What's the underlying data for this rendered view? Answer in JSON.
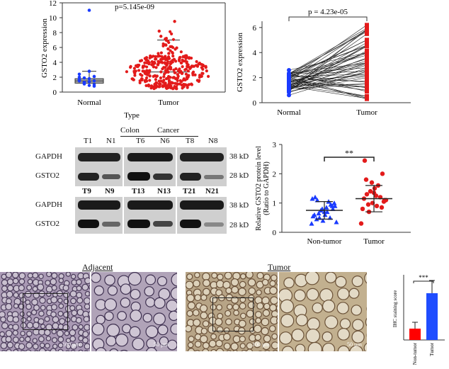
{
  "panel_a": {
    "pvalue": "p=5.145e-09",
    "ylabel": "GSTO2 expression",
    "xlabel": "Type",
    "yticks": [
      "0",
      "2",
      "4",
      "6",
      "8",
      "10",
      "12"
    ]
  },
  "panel_b": {
    "pvalue": "p = 4.23e-05",
    "ylabel": "GSTO2 expression",
    "yticks": [
      "0",
      "2",
      "4",
      "6"
    ]
  },
  "panel_c": {
    "group_label_1": "Colon",
    "group_label_2": "Cancer",
    "row1_samples": [
      "T1",
      "N1",
      "T6",
      "N6",
      "T8",
      "N8"
    ],
    "row2_samples": [
      "T9",
      "N9",
      "T13",
      "N13",
      "T21",
      "N21"
    ],
    "gapdh": "GAPDH",
    "gsto2": "GSTO2",
    "kd38": "38 kD",
    "kd28": "28 kD"
  },
  "panel_d": {
    "ylabel_line1": "Relative GSTO2 protein level",
    "ylabel_line2": "(Ratio to GAPDH)",
    "yticks": [
      "0",
      "1",
      "2",
      "3"
    ],
    "sig": "**"
  },
  "panel_e": {
    "adjacent": "Adjacent",
    "tumor": "Tumor",
    "scale1": "100 µm",
    "scale2": "50 µm",
    "scale3": "100 µm",
    "scale4": "50 µm",
    "ihc_ylabel": "IHC staining score",
    "ihc_sig": "***"
  },
  "chart_data": [
    {
      "type": "scatter",
      "categories": [
        "Normal",
        "Tumor"
      ],
      "ylim": [
        0,
        12
      ],
      "series": [
        {
          "name": "Normal",
          "values": [
            1.5,
            1.2,
            0.9,
            2.1,
            1.7,
            1.3,
            2.8,
            1.0,
            1.6,
            1.9,
            1.4,
            0.8,
            2.4,
            1.1,
            1.8,
            1.5,
            2.0,
            1.3,
            11.0
          ]
        },
        {
          "name": "Tumor",
          "values": [
            2.7,
            3.1,
            2.2,
            4.0,
            1.8,
            5.2,
            3.4,
            2.5,
            6.1,
            1.2,
            7.5,
            2.9,
            4.4,
            3.8,
            0.6,
            8.2,
            9.5,
            2.1,
            3.3,
            5.8
          ]
        }
      ]
    },
    {
      "type": "line",
      "categories": [
        "Normal",
        "Tumor"
      ],
      "ylim": [
        0,
        6.5
      ],
      "pairs": [
        [
          1.5,
          2.3
        ],
        [
          1.0,
          4.5
        ],
        [
          1.8,
          1.0
        ],
        [
          2.2,
          5.8
        ],
        [
          1.2,
          3.0
        ],
        [
          0.6,
          2.5
        ],
        [
          1.9,
          6.2
        ],
        [
          1.4,
          0.5
        ],
        [
          2.6,
          4.0
        ],
        [
          1.6,
          3.5
        ],
        [
          1.1,
          1.5
        ],
        [
          2.0,
          5.0
        ],
        [
          0.9,
          2.0
        ],
        [
          1.7,
          3.2
        ],
        [
          1.3,
          4.8
        ]
      ]
    },
    {
      "type": "scatter",
      "categories": [
        "Non-tumor",
        "Tumor"
      ],
      "ylim": [
        0,
        3
      ],
      "series": [
        {
          "name": "Non-tumor",
          "mean": 0.75,
          "sd": 0.3,
          "values": [
            0.3,
            0.5,
            0.7,
            0.9,
            1.1,
            0.6,
            0.8,
            1.2,
            0.4,
            0.95,
            0.55,
            0.75,
            1.05,
            0.35,
            0.65,
            0.85,
            1.0,
            0.45,
            0.7,
            0.9,
            0.6,
            0.8,
            0.5,
            1.15
          ]
        },
        {
          "name": "Tumor",
          "mean": 1.15,
          "sd": 0.45,
          "values": [
            0.3,
            0.7,
            0.9,
            1.1,
            1.3,
            1.5,
            2.0,
            2.45,
            1.0,
            1.2,
            0.8,
            1.4,
            1.6,
            1.1,
            0.95,
            1.25,
            1.05,
            1.8,
            1.35,
            0.85,
            1.15,
            1.7
          ]
        }
      ]
    },
    {
      "type": "bar",
      "categories": [
        "Non-tumor",
        "Tumor"
      ],
      "values": [
        1.6,
        6.6
      ],
      "errors": [
        0.9,
        1.8
      ],
      "ylabel": "IHC staining score",
      "colors": [
        "#ff0000",
        "#1f4dff"
      ]
    }
  ]
}
